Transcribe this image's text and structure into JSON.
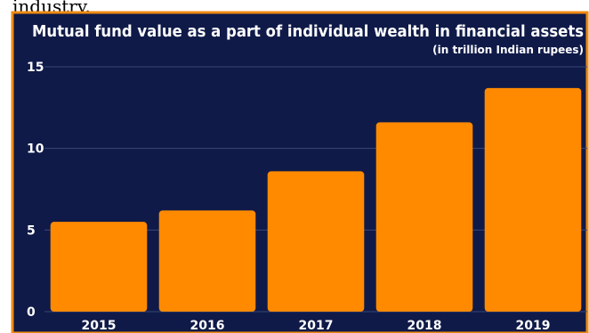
{
  "cropped_text": "industry.",
  "chart_data": {
    "type": "bar",
    "title": "Mutual fund value as a part of individual wealth in financial assets",
    "subtitle": "(in trillion Indian rupees)",
    "categories": [
      "2015",
      "2016",
      "2017",
      "2018",
      "2019"
    ],
    "values": [
      5.5,
      6.2,
      8.6,
      11.6,
      13.7
    ],
    "ylim": [
      0,
      15
    ],
    "yticks": [
      0,
      5,
      10,
      15
    ],
    "grid": true,
    "colors": {
      "background": "#0f1a48",
      "bar": "#ff8a00",
      "border": "#f08a12",
      "text": "#ffffff"
    }
  }
}
